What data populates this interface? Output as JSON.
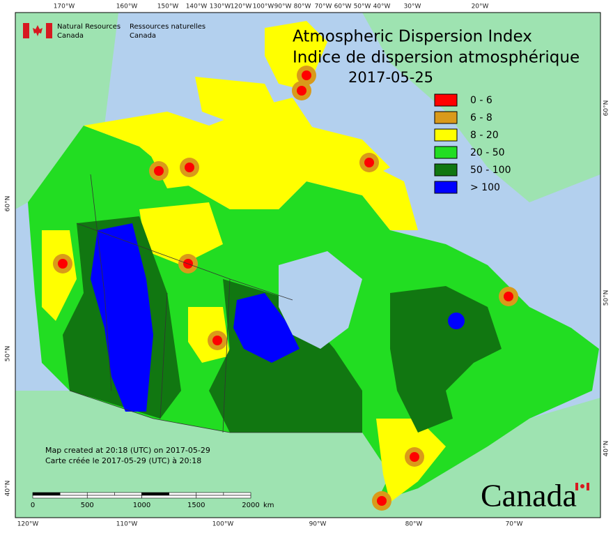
{
  "agency": {
    "en_line1": "Natural Resources",
    "en_line2": "Canada",
    "fr_line1": "Ressources naturelles",
    "fr_line2": "Canada"
  },
  "title": {
    "en": "Atmospheric Dispersion Index",
    "fr": "Indice de dispersion atmosphérique",
    "date": "2017-05-25"
  },
  "legend": [
    {
      "label": "0 - 6",
      "color": "#ff0000"
    },
    {
      "label": "6 - 8",
      "color": "#d99a1a"
    },
    {
      "label": "8 - 20",
      "color": "#ffff00"
    },
    {
      "label": "20 - 50",
      "color": "#22dd22"
    },
    {
      "label": "50 - 100",
      "color": "#117711"
    },
    {
      "label": "> 100",
      "color": "#0000ff"
    }
  ],
  "map_axes": {
    "top": [
      "170°W",
      "160°W",
      "150°W",
      "140°W",
      "130°W",
      "120°W",
      "100°W",
      "90°W",
      "80°W",
      "70°W",
      "60°W",
      "50°W",
      "40°W",
      "30°W",
      "20°W"
    ],
    "bottom": [
      "120°W",
      "110°W",
      "100°W",
      "90°W",
      "80°W",
      "70°W"
    ],
    "left": [
      "60°N",
      "50°N",
      "40°N"
    ],
    "right": [
      "60°N",
      "50°N",
      "40°N"
    ]
  },
  "footer": {
    "created_en": "Map created at 20:18 (UTC) on 2017-05-29",
    "created_fr": "Carte créée le 2017-05-29 (UTC) à 20:18"
  },
  "scale_bar": {
    "labels": [
      "0",
      "500",
      "1000",
      "1500",
      "2000"
    ],
    "unit": "km"
  },
  "wordmark": "Canada"
}
